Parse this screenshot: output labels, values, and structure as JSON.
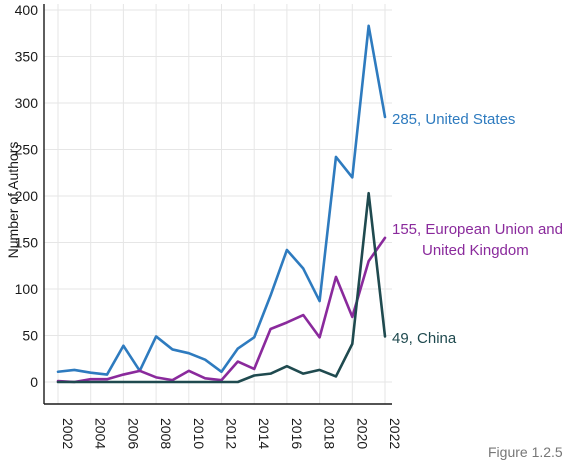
{
  "chart_data": {
    "type": "line",
    "xlabel": "",
    "ylabel": "Number of Authors",
    "ylim": [
      0,
      400
    ],
    "xlim": [
      2002,
      2022
    ],
    "grid": true,
    "yticks": [
      0,
      50,
      100,
      150,
      200,
      250,
      300,
      350,
      400
    ],
    "xticks": [
      "2002",
      "2004",
      "2006",
      "2008",
      "2010",
      "2012",
      "2014",
      "2016",
      "2018",
      "2020",
      "2022"
    ],
    "x": [
      2002,
      2003,
      2004,
      2005,
      2006,
      2007,
      2008,
      2009,
      2010,
      2011,
      2012,
      2013,
      2014,
      2015,
      2016,
      2017,
      2018,
      2019,
      2020,
      2021,
      2022
    ],
    "series": [
      {
        "name": "United States",
        "color": "#2e7bbf",
        "end_label": "285, United States",
        "values": [
          11,
          13,
          10,
          8,
          39,
          12,
          49,
          35,
          31,
          24,
          11,
          36,
          48,
          93,
          142,
          122,
          87,
          242,
          220,
          383,
          285
        ]
      },
      {
        "name": "European Union and United Kingdom",
        "color": "#8a2a9c",
        "end_label": [
          "155, European Union and",
          "United Kingdom"
        ],
        "values": [
          1,
          0,
          3,
          3,
          8,
          12,
          5,
          2,
          12,
          4,
          2,
          22,
          14,
          57,
          64,
          72,
          48,
          113,
          70,
          130,
          155
        ]
      },
      {
        "name": "China",
        "color": "#1f4a4f",
        "end_label": "49, China",
        "values": [
          0,
          0,
          0,
          0,
          0,
          0,
          0,
          0,
          0,
          0,
          0,
          0,
          7,
          9,
          17,
          9,
          13,
          6,
          41,
          203,
          49
        ]
      }
    ]
  },
  "page_fragment": "Figure 1.2.5"
}
